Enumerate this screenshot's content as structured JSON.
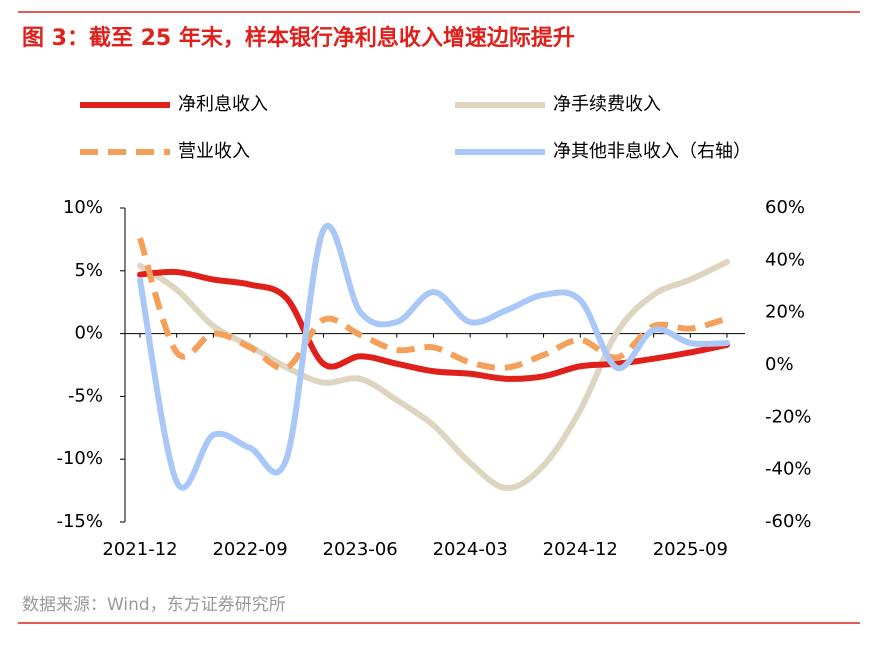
{
  "chart_data": {
    "type": "line",
    "title": "图 3：截至 25 年末，样本银行净利息收入增速边际提升",
    "source": "数据来源：Wind，东方证券研究所",
    "categories": [
      "2021-12",
      null,
      null,
      "2022-09",
      null,
      null,
      "2023-06",
      null,
      null,
      "2024-03",
      null,
      null,
      "2024-12",
      null,
      null,
      "2025-09",
      null
    ],
    "series": [
      {
        "name": "净利息收入",
        "color": "#e0201b",
        "values": [
          4.7,
          4.9,
          4.3,
          3.9,
          2.8,
          -2.4,
          -1.8,
          -2.4,
          -3.0,
          -3.2,
          -3.6,
          -3.4,
          -2.6,
          -2.4,
          -2.0,
          -1.5,
          -0.9
        ]
      },
      {
        "name": "净手续费收入",
        "color": "#ddd5c0",
        "values": [
          5.4,
          3.5,
          0.6,
          -1.0,
          -2.7,
          -3.9,
          -3.6,
          -5.3,
          -7.3,
          -10.3,
          -12.3,
          -10.5,
          -6.1,
          0.1,
          3.1,
          4.3,
          5.7
        ]
      },
      {
        "name": "营业收入",
        "color": "#f5a05a",
        "dashed": true,
        "values": [
          7.6,
          -1.5,
          0.0,
          -1.1,
          -2.7,
          1.1,
          -0.1,
          -1.3,
          -1.1,
          -2.3,
          -2.7,
          -1.7,
          -0.5,
          -1.9,
          0.6,
          0.4,
          1.2
        ]
      },
      {
        "name": "净其他非息收入（右轴）",
        "color": "#a9c8f7",
        "axis": "y2",
        "values": [
          32.5,
          -44.7,
          -26.7,
          -31.7,
          -35.5,
          51.6,
          20.3,
          16.4,
          27.9,
          16.4,
          21.0,
          26.8,
          24.8,
          -1.1,
          13.4,
          8.4,
          8.4
        ]
      }
    ],
    "ylim": [
      -15,
      10
    ],
    "yticks": [
      {
        "value": -15,
        "label": "-15%"
      },
      {
        "value": -10,
        "label": "-10%"
      },
      {
        "value": -5,
        "label": "-5%"
      },
      {
        "value": 0,
        "label": "0%"
      },
      {
        "value": 5,
        "label": "5%"
      },
      {
        "value": 10,
        "label": "10%"
      }
    ],
    "y2lim": [
      -60,
      60
    ],
    "y2ticks": [
      {
        "value": -60,
        "label": "-60%"
      },
      {
        "value": -40,
        "label": "-40%"
      },
      {
        "value": -20,
        "label": "-20%"
      },
      {
        "value": 0,
        "label": "0%"
      },
      {
        "value": 20,
        "label": "20%"
      },
      {
        "value": 40,
        "label": "40%"
      },
      {
        "value": 60,
        "label": "60%"
      }
    ],
    "smooth": true
  }
}
